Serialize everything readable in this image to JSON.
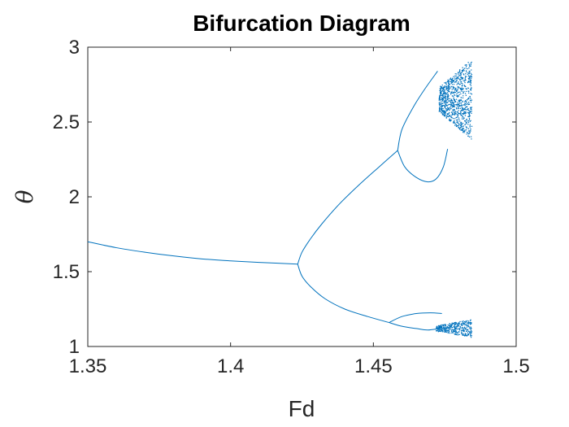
{
  "chart_data": {
    "type": "scatter",
    "title": "Bifurcation Diagram",
    "xlabel": "Fd",
    "ylabel": "θ",
    "xlim": [
      1.35,
      1.5
    ],
    "ylim": [
      1,
      3
    ],
    "xticks": [
      {
        "value": 1.35,
        "label": "1.35"
      },
      {
        "value": 1.4,
        "label": "1.4"
      },
      {
        "value": 1.45,
        "label": "1.45"
      },
      {
        "value": 1.5,
        "label": "1.5"
      }
    ],
    "yticks": [
      {
        "value": 1,
        "label": "1"
      },
      {
        "value": 1.5,
        "label": "1.5"
      },
      {
        "value": 2,
        "label": "2"
      },
      {
        "value": 2.5,
        "label": "2.5"
      },
      {
        "value": 3,
        "label": "3"
      }
    ],
    "grid": false,
    "series_color": "#0072BD",
    "branches": [
      {
        "segment": "period-1",
        "points": [
          [
            1.35,
            1.7
          ],
          [
            1.36,
            1.66
          ],
          [
            1.37,
            1.63
          ],
          [
            1.38,
            1.605
          ],
          [
            1.39,
            1.585
          ],
          [
            1.4,
            1.572
          ],
          [
            1.41,
            1.562
          ],
          [
            1.4235,
            1.55
          ]
        ]
      },
      {
        "segment": "period-2-upper",
        "points": [
          [
            1.4235,
            1.55
          ],
          [
            1.425,
            1.63
          ],
          [
            1.428,
            1.72
          ],
          [
            1.432,
            1.82
          ],
          [
            1.438,
            1.95
          ],
          [
            1.445,
            2.08
          ],
          [
            1.452,
            2.2
          ],
          [
            1.4585,
            2.31
          ]
        ]
      },
      {
        "segment": "period-2-lower",
        "points": [
          [
            1.4235,
            1.55
          ],
          [
            1.425,
            1.47
          ],
          [
            1.428,
            1.4
          ],
          [
            1.433,
            1.32
          ],
          [
            1.44,
            1.25
          ],
          [
            1.448,
            1.2
          ],
          [
            1.4555,
            1.16
          ]
        ]
      },
      {
        "segment": "period-4-upper-a",
        "points": [
          [
            1.4585,
            2.31
          ],
          [
            1.46,
            2.45
          ],
          [
            1.464,
            2.6
          ],
          [
            1.468,
            2.72
          ],
          [
            1.4725,
            2.84
          ]
        ]
      },
      {
        "segment": "period-4-upper-b",
        "points": [
          [
            1.4585,
            2.31
          ],
          [
            1.461,
            2.2
          ],
          [
            1.465,
            2.13
          ],
          [
            1.469,
            2.1
          ],
          [
            1.472,
            2.12
          ],
          [
            1.4745,
            2.2
          ],
          [
            1.476,
            2.32
          ]
        ]
      },
      {
        "segment": "period-4-lower-a",
        "points": [
          [
            1.4555,
            1.16
          ],
          [
            1.46,
            1.2
          ],
          [
            1.465,
            1.22
          ],
          [
            1.47,
            1.225
          ],
          [
            1.474,
            1.22
          ]
        ]
      },
      {
        "segment": "period-4-lower-b",
        "points": [
          [
            1.4555,
            1.16
          ],
          [
            1.46,
            1.135
          ],
          [
            1.465,
            1.12
          ],
          [
            1.469,
            1.11
          ],
          [
            1.473,
            1.12
          ]
        ]
      }
    ],
    "chaotic_regions": [
      {
        "x": [
          1.473,
          1.4845
        ],
        "y": [
          2.38,
          2.92
        ]
      },
      {
        "x": [
          1.472,
          1.4845
        ],
        "y": [
          1.06,
          1.18
        ]
      }
    ]
  }
}
